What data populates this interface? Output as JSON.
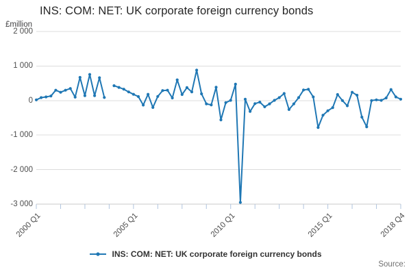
{
  "title": "INS: COM: NET: UK corporate foreign currency bonds",
  "source_label": "Source:",
  "legend": {
    "label": "INS: COM: NET: UK corporate foreign currency bonds"
  },
  "y_axis": {
    "unit": "£million",
    "tick_labels": [
      "2 000",
      "1 000",
      "0",
      "-1 000",
      "-2 000",
      "-3 000"
    ],
    "tick_values": [
      2000,
      1000,
      0,
      -1000,
      -2000,
      -3000
    ]
  },
  "x_axis": {
    "labeled_ticks": [
      {
        "index": 0,
        "label": "2000 Q1"
      },
      {
        "index": 20,
        "label": "2005 Q1"
      },
      {
        "index": 40,
        "label": "2010 Q1"
      },
      {
        "index": 60,
        "label": "2015 Q1"
      },
      {
        "index": 75,
        "label": "2018 Q4"
      }
    ],
    "minor_tick_every": 5
  },
  "colors": {
    "line": "#1f77b4",
    "grid": "#dcdcdc",
    "axis": "#c8c8c8",
    "tick": "#b0c4de",
    "text_dark": "#333333",
    "text_gray": "#4d4d4d"
  },
  "chart_data": {
    "type": "line",
    "title": "INS: COM: NET: UK corporate foreign currency bonds",
    "xlabel": "",
    "ylabel": "£million",
    "ylim": [
      -3000,
      2000
    ],
    "grid": true,
    "legend_position": "bottom",
    "note": "null value = gap in series (2003 Q4)",
    "x": [
      "2000 Q1",
      "2000 Q2",
      "2000 Q3",
      "2000 Q4",
      "2001 Q1",
      "2001 Q2",
      "2001 Q3",
      "2001 Q4",
      "2002 Q1",
      "2002 Q2",
      "2002 Q3",
      "2002 Q4",
      "2003 Q1",
      "2003 Q2",
      "2003 Q3",
      "2003 Q4",
      "2004 Q1",
      "2004 Q2",
      "2004 Q3",
      "2004 Q4",
      "2005 Q1",
      "2005 Q2",
      "2005 Q3",
      "2005 Q4",
      "2006 Q1",
      "2006 Q2",
      "2006 Q3",
      "2006 Q4",
      "2007 Q1",
      "2007 Q2",
      "2007 Q3",
      "2007 Q4",
      "2008 Q1",
      "2008 Q2",
      "2008 Q3",
      "2008 Q4",
      "2009 Q1",
      "2009 Q2",
      "2009 Q3",
      "2009 Q4",
      "2010 Q1",
      "2010 Q2",
      "2010 Q3",
      "2010 Q4",
      "2011 Q1",
      "2011 Q2",
      "2011 Q3",
      "2011 Q4",
      "2012 Q1",
      "2012 Q2",
      "2012 Q3",
      "2012 Q4",
      "2013 Q1",
      "2013 Q2",
      "2013 Q3",
      "2013 Q4",
      "2014 Q1",
      "2014 Q2",
      "2014 Q3",
      "2014 Q4",
      "2015 Q1",
      "2015 Q2",
      "2015 Q3",
      "2015 Q4",
      "2016 Q1",
      "2016 Q2",
      "2016 Q3",
      "2016 Q4",
      "2017 Q1",
      "2017 Q2",
      "2017 Q3",
      "2017 Q4",
      "2018 Q1",
      "2018 Q2",
      "2018 Q3",
      "2018 Q4"
    ],
    "values": [
      20,
      85,
      105,
      130,
      300,
      240,
      300,
      350,
      100,
      670,
      140,
      755,
      140,
      660,
      90,
      null,
      430,
      380,
      330,
      250,
      180,
      115,
      -130,
      180,
      -200,
      120,
      290,
      300,
      75,
      600,
      175,
      375,
      250,
      880,
      195,
      -95,
      -125,
      385,
      -560,
      -60,
      5,
      475,
      -2950,
      40,
      -315,
      -90,
      -45,
      -180,
      -95,
      5,
      85,
      205,
      -260,
      -95,
      85,
      305,
      325,
      105,
      -780,
      -425,
      -295,
      -205,
      175,
      0,
      -150,
      240,
      155,
      -480,
      -760,
      0,
      20,
      5,
      75,
      320,
      105,
      40
    ]
  }
}
